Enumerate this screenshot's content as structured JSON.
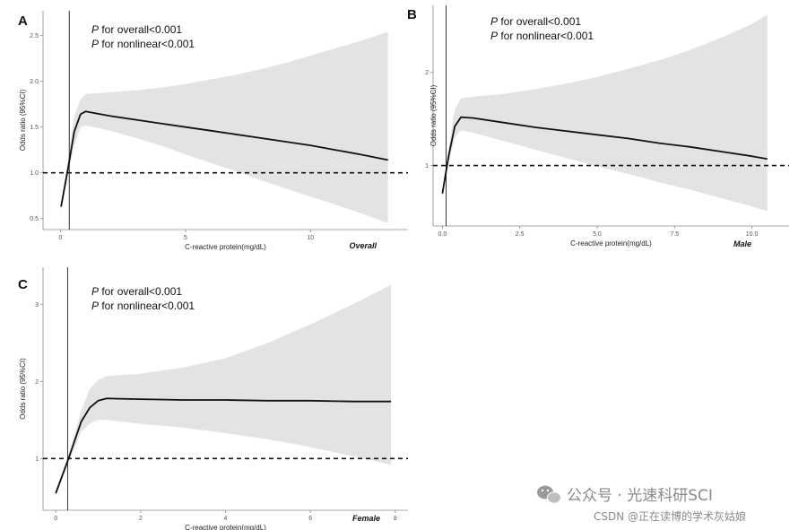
{
  "chart_data": [
    {
      "panel": "A",
      "type": "line",
      "subtitle": "Overall",
      "xlabel": "C-reactive protein(mg/dL)",
      "ylabel": "Odds ratio (95%CI)",
      "xlim": [
        -0.7,
        13.9
      ],
      "ylim": [
        0.38,
        2.77
      ],
      "xticks": [
        0,
        5,
        10
      ],
      "xtick_labels": [
        "0",
        "5",
        "10"
      ],
      "yticks": [
        0.5,
        1.0,
        1.5,
        2.0,
        2.5
      ],
      "ytick_labels": [
        "0.5",
        "1.0",
        "1.5",
        "2.0",
        "2.5"
      ],
      "annotation_p": "P",
      "annotation_overall": " for overall<0.001",
      "annotation_nonlinear": " for nonlinear<0.001",
      "reference_y": 1.0,
      "reference_x": 0.35,
      "series": [
        {
          "name": "Odds ratio",
          "x": [
            0.02,
            0.3,
            0.55,
            0.8,
            1.0,
            2,
            3,
            4,
            5,
            6,
            7,
            8,
            9,
            10,
            11,
            12,
            13.1
          ],
          "y": [
            0.63,
            1.05,
            1.45,
            1.64,
            1.67,
            1.62,
            1.58,
            1.54,
            1.5,
            1.46,
            1.42,
            1.38,
            1.34,
            1.3,
            1.25,
            1.2,
            1.14
          ],
          "lower": [
            0.58,
            0.98,
            1.3,
            1.5,
            1.52,
            1.46,
            1.38,
            1.3,
            1.2,
            1.11,
            1.02,
            0.92,
            0.83,
            0.74,
            0.65,
            0.56,
            0.45
          ],
          "upper": [
            0.68,
            1.15,
            1.62,
            1.8,
            1.86,
            1.88,
            1.9,
            1.93,
            1.97,
            2.02,
            2.07,
            2.13,
            2.2,
            2.28,
            2.36,
            2.44,
            2.54
          ]
        }
      ]
    },
    {
      "panel": "B",
      "type": "line",
      "subtitle": "Male",
      "xlabel": "C-reactive protein(mg/dL)",
      "ylabel": "Odds ratio (95%CI)",
      "xlim": [
        -0.3,
        11.2
      ],
      "ylim": [
        0.35,
        2.72
      ],
      "xticks": [
        0,
        2.5,
        5,
        7.5,
        10
      ],
      "xtick_labels": [
        "0.0",
        "2.5",
        "5.0",
        "7.5",
        "10.0"
      ],
      "yticks": [
        1,
        2
      ],
      "ytick_labels": [
        "1",
        "2"
      ],
      "annotation_p": "P",
      "annotation_overall": " for overall<0.001",
      "annotation_nonlinear": " for nonlinear<0.001",
      "reference_y": 1.0,
      "reference_x": 0.12,
      "series": [
        {
          "name": "Odds ratio",
          "x": [
            0.0,
            0.2,
            0.4,
            0.6,
            1,
            2,
            3,
            4,
            5,
            6,
            7,
            8,
            9,
            10,
            10.5
          ],
          "y": [
            0.7,
            1.1,
            1.42,
            1.52,
            1.51,
            1.46,
            1.41,
            1.37,
            1.33,
            1.29,
            1.24,
            1.2,
            1.15,
            1.1,
            1.07
          ],
          "lower": [
            0.65,
            1.02,
            1.3,
            1.38,
            1.35,
            1.26,
            1.17,
            1.08,
            0.99,
            0.91,
            0.82,
            0.74,
            0.65,
            0.56,
            0.51
          ],
          "upper": [
            0.75,
            1.18,
            1.6,
            1.72,
            1.74,
            1.77,
            1.82,
            1.88,
            1.95,
            2.04,
            2.13,
            2.24,
            2.37,
            2.52,
            2.62
          ]
        }
      ]
    },
    {
      "panel": "C",
      "type": "line",
      "subtitle": "Female",
      "xlabel": "C-reactive protein(mg/dL)",
      "ylabel": "Odds ratio (95%CI)",
      "xlim": [
        -0.3,
        8.3
      ],
      "ylim": [
        0.33,
        3.48
      ],
      "xticks": [
        0,
        2,
        4,
        6,
        8
      ],
      "xtick_labels": [
        "0",
        "2",
        "4",
        "6",
        "8"
      ],
      "yticks": [
        1,
        2,
        3
      ],
      "ytick_labels": [
        "1",
        "2",
        "3"
      ],
      "annotation_p": "P",
      "annotation_overall": " for overall<0.001",
      "annotation_nonlinear": " for nonlinear<0.001",
      "reference_y": 1.0,
      "reference_x": 0.28,
      "series": [
        {
          "name": "Odds ratio",
          "x": [
            0.0,
            0.3,
            0.6,
            0.8,
            1.0,
            1.2,
            2,
            3,
            4,
            5,
            6,
            7,
            7.9
          ],
          "y": [
            0.55,
            1.0,
            1.48,
            1.66,
            1.75,
            1.78,
            1.77,
            1.76,
            1.76,
            1.75,
            1.75,
            1.74,
            1.74
          ],
          "lower": [
            0.52,
            0.95,
            1.35,
            1.45,
            1.5,
            1.5,
            1.45,
            1.4,
            1.33,
            1.25,
            1.15,
            1.03,
            0.92
          ],
          "upper": [
            0.58,
            1.05,
            1.62,
            1.9,
            2.02,
            2.07,
            2.1,
            2.18,
            2.3,
            2.5,
            2.74,
            3.0,
            3.25
          ]
        }
      ]
    }
  ],
  "watermark": {
    "line1": "公众号 · 光速科研SCI",
    "line2": "CSDN @正在读博的学术灰姑娘",
    "icon": "wechat-icon"
  }
}
